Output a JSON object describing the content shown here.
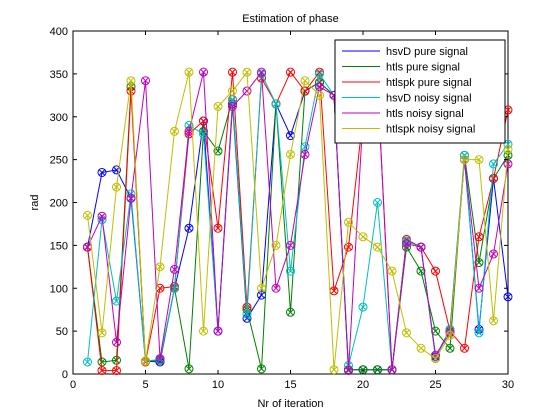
{
  "chart_data": {
    "type": "line",
    "title": "Estimation of phase",
    "xlabel": "Nr of iteration",
    "ylabel": "rad",
    "xlim": [
      0,
      30
    ],
    "ylim": [
      0,
      400
    ],
    "xticks": [
      "0",
      "5",
      "10",
      "15",
      "20",
      "25",
      "30"
    ],
    "yticks": [
      "0",
      "50",
      "100",
      "150",
      "200",
      "250",
      "300",
      "350",
      "400"
    ],
    "legend_position": "top-right",
    "grid": false,
    "x": [
      1,
      2,
      3,
      4,
      5,
      6,
      7,
      8,
      9,
      10,
      11,
      12,
      13,
      14,
      15,
      16,
      17,
      18,
      19,
      20,
      21,
      22,
      23,
      24,
      25,
      26,
      27,
      28,
      29,
      30
    ],
    "series": [
      {
        "name": "hsvD pure signal",
        "color": "#0000ff",
        "values": [
          148,
          235,
          238,
          205,
          15,
          14,
          100,
          170,
          295,
          50,
          315,
          65,
          92,
          315,
          278,
          330,
          340,
          325,
          5,
          5,
          5,
          5,
          155,
          148,
          20,
          52,
          250,
          52,
          228,
          90
        ]
      },
      {
        "name": "htls pure signal",
        "color": "#008000",
        "values": [
          148,
          14,
          16,
          335,
          15,
          16,
          100,
          6,
          283,
          260,
          320,
          75,
          6,
          315,
          72,
          330,
          340,
          325,
          5,
          5,
          5,
          5,
          148,
          120,
          50,
          30,
          255,
          130,
          228,
          255
        ]
      },
      {
        "name": "htlspk pure signal",
        "color": "#ff0000",
        "values": [
          148,
          4,
          4,
          330,
          14,
          100,
          102,
          280,
          295,
          170,
          352,
          78,
          345,
          315,
          352,
          330,
          352,
          97,
          148,
          300,
          340,
          5,
          157,
          148,
          120,
          50,
          30,
          160,
          228,
          308
        ]
      },
      {
        "name": "hsvD noisy signal",
        "color": "#00bfbf",
        "values": [
          14,
          180,
          85,
          210,
          15,
          17,
          100,
          290,
          280,
          50,
          320,
          70,
          350,
          315,
          120,
          265,
          350,
          325,
          10,
          78,
          200,
          5,
          155,
          148,
          18,
          52,
          255,
          48,
          245,
          268
        ]
      },
      {
        "name": "htls noisy signal",
        "color": "#bf00bf",
        "values": [
          148,
          184,
          37,
          205,
          342,
          18,
          122,
          283,
          352,
          50,
          312,
          330,
          352,
          100,
          150,
          256,
          335,
          325,
          4,
          300,
          340,
          5,
          152,
          148,
          22,
          48,
          250,
          100,
          140,
          245
        ]
      },
      {
        "name": "htlspk noisy signal",
        "color": "#bfbf00",
        "values": [
          185,
          48,
          218,
          342,
          15,
          125,
          283,
          352,
          50,
          312,
          330,
          352,
          100,
          150,
          256,
          342,
          325,
          5,
          177,
          160,
          148,
          120,
          48,
          30,
          18,
          45,
          250,
          250,
          62,
          262
        ]
      }
    ]
  }
}
